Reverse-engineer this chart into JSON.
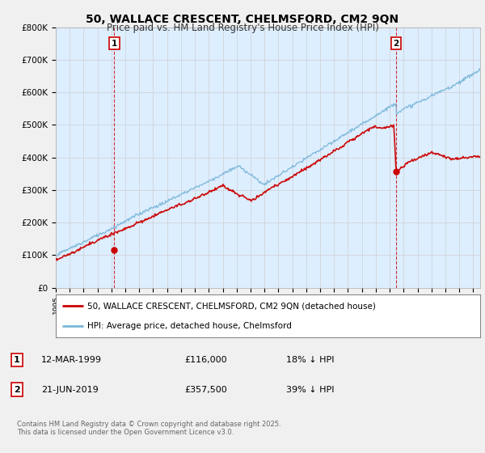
{
  "title": "50, WALLACE CRESCENT, CHELMSFORD, CM2 9QN",
  "subtitle": "Price paid vs. HM Land Registry's House Price Index (HPI)",
  "ylabel_ticks": [
    "£0",
    "£100K",
    "£200K",
    "£300K",
    "£400K",
    "£500K",
    "£600K",
    "£700K",
    "£800K"
  ],
  "ylim": [
    0,
    800000
  ],
  "xlim_start": 1995.0,
  "xlim_end": 2025.5,
  "sale1_x": 1999.2,
  "sale1_y": 116000,
  "sale2_x": 2019.47,
  "sale2_y": 357500,
  "sale1_label": "1",
  "sale2_label": "2",
  "red_color": "#cc0000",
  "blue_color": "#7ab6d8",
  "plot_bg_color": "#ddeeff",
  "marker_border_color": "#cc0000",
  "vline_color": "#cc0000",
  "legend_line1": "50, WALLACE CRESCENT, CHELMSFORD, CM2 9QN (detached house)",
  "legend_line2": "HPI: Average price, detached house, Chelmsford",
  "table_row1": [
    "1",
    "12-MAR-1999",
    "£116,000",
    "18% ↓ HPI"
  ],
  "table_row2": [
    "2",
    "21-JUN-2019",
    "£357,500",
    "39% ↓ HPI"
  ],
  "footnote": "Contains HM Land Registry data © Crown copyright and database right 2025.\nThis data is licensed under the Open Government Licence v3.0.",
  "bg_color": "#f0f0f0",
  "grid_color": "#cccccc"
}
